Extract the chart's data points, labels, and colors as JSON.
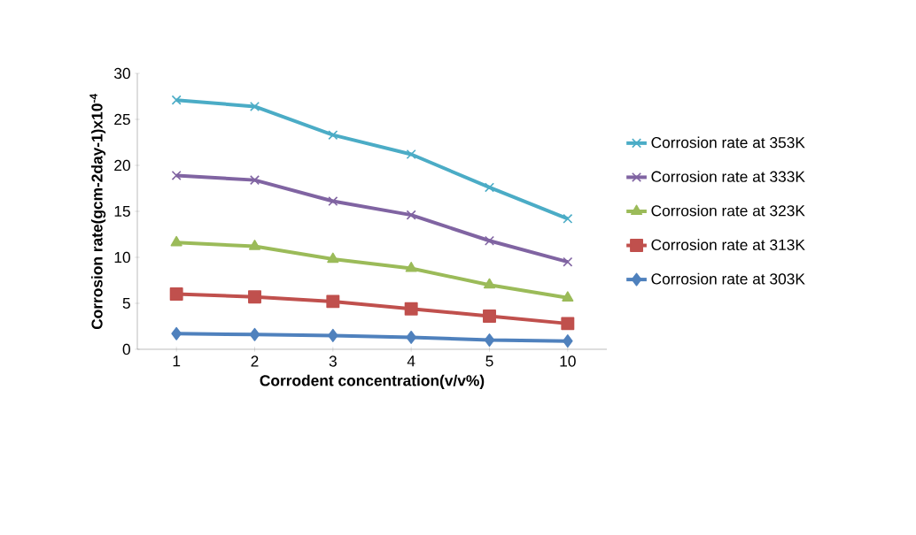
{
  "chart_data": {
    "type": "line",
    "xlabel": "Corrodent concentration(v/v%)",
    "ylabel": "Corrosion rate(gcm-2day-1)x10$^{-4}$",
    "categories": [
      "1",
      "2",
      "3",
      "4",
      "5",
      "10"
    ],
    "ylim": [
      0,
      30
    ],
    "yticks": [
      0,
      5,
      10,
      15,
      20,
      25,
      30
    ],
    "grid": false,
    "legend": "right",
    "series": [
      {
        "name": "Corrosion rate at 303K",
        "color": "#4f81bd",
        "marker": "diamond",
        "values": [
          1.7,
          1.6,
          1.5,
          1.3,
          1.0,
          0.9
        ]
      },
      {
        "name": "Corrosion rate at 313K",
        "color": "#c0504d",
        "marker": "square",
        "values": [
          6.0,
          5.7,
          5.2,
          4.4,
          3.6,
          2.8
        ]
      },
      {
        "name": "Corrosion rate at 323K",
        "color": "#9bbb59",
        "marker": "triangle",
        "values": [
          11.6,
          11.2,
          9.8,
          8.8,
          7.0,
          5.6
        ]
      },
      {
        "name": "Corrosion rate at 333K",
        "color": "#8064a2",
        "marker": "cross",
        "values": [
          18.9,
          18.4,
          16.1,
          14.6,
          11.8,
          9.5
        ]
      },
      {
        "name": "Corrosion rate at 353K",
        "color": "#4bacc6",
        "marker": "cross",
        "values": [
          27.1,
          26.4,
          23.3,
          21.2,
          17.6,
          14.2
        ]
      }
    ]
  }
}
